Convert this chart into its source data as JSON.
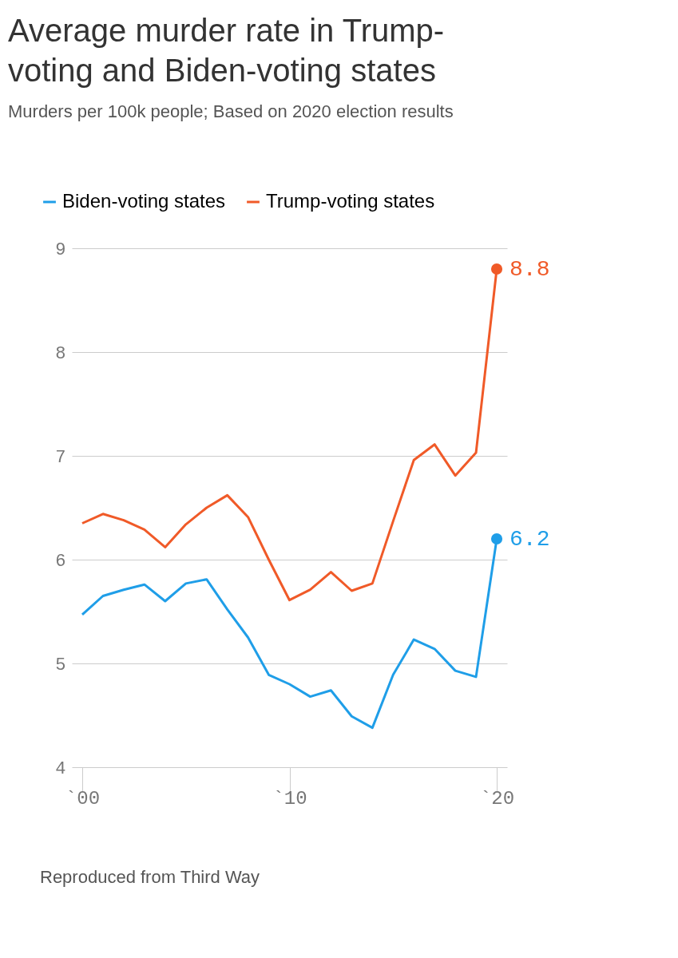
{
  "chart_data": {
    "type": "line",
    "title": "Average murder rate in Trump-voting and Biden-voting states",
    "subtitle": "Murders per 100k people; Based on 2020 election results",
    "categories": [
      "`00",
      null,
      null,
      null,
      null,
      null,
      null,
      null,
      null,
      null,
      "`10",
      null,
      null,
      null,
      null,
      null,
      null,
      null,
      null,
      null,
      "`20"
    ],
    "series": [
      {
        "name": "Biden-voting states",
        "color": "#1f9ee8",
        "values": [
          5.47,
          5.65,
          5.71,
          5.76,
          5.6,
          5.77,
          5.81,
          5.52,
          5.25,
          4.89,
          4.8,
          4.68,
          4.74,
          4.49,
          4.38,
          4.89,
          5.23,
          5.14,
          4.93,
          4.87,
          6.2
        ],
        "value_labels": [
          null,
          null,
          null,
          null,
          null,
          null,
          null,
          null,
          null,
          null,
          null,
          null,
          null,
          null,
          null,
          null,
          null,
          null,
          null,
          null,
          "6.2"
        ]
      },
      {
        "name": "Trump-voting states",
        "color": "#f05a28",
        "values": [
          6.35,
          6.44,
          6.38,
          6.29,
          6.12,
          6.34,
          6.5,
          6.62,
          6.41,
          6.0,
          5.61,
          5.71,
          5.88,
          5.7,
          5.77,
          6.37,
          6.96,
          7.11,
          6.81,
          7.03,
          8.8
        ],
        "value_labels": [
          null,
          null,
          null,
          null,
          null,
          null,
          null,
          null,
          null,
          null,
          null,
          null,
          null,
          null,
          null,
          null,
          null,
          null,
          null,
          null,
          "8.8"
        ]
      }
    ],
    "ylim": [
      4,
      9
    ],
    "yticks": [
      4,
      5,
      6,
      7,
      8,
      9
    ],
    "grid": "y",
    "legend": "top",
    "annotations": [
      "Reproduced from Third Way"
    ]
  }
}
